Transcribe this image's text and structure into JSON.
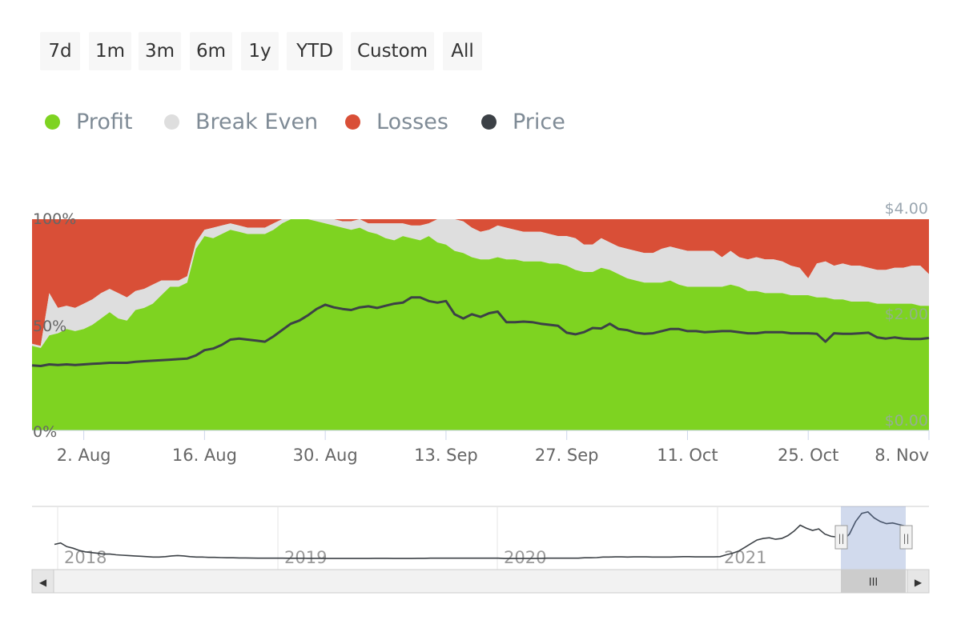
{
  "range_buttons": [
    "7d",
    "1m",
    "3m",
    "6m",
    "1y",
    "YTD",
    "Custom",
    "All"
  ],
  "legend": [
    {
      "label": "Profit",
      "color": "#7ed321"
    },
    {
      "label": "Break Even",
      "color": "#dedede"
    },
    {
      "label": "Losses",
      "color": "#d94f37"
    },
    {
      "label": "Price",
      "color": "#3c4146"
    }
  ],
  "chart_data": {
    "type": "area",
    "stacking": "percent",
    "x_start": "2021-07-27",
    "x_step_days": 1,
    "xlim": [
      "2021-07-27",
      "2021-11-08"
    ],
    "x_tick_labels": [
      "2. Aug",
      "16. Aug",
      "30. Aug",
      "13. Sep",
      "27. Sep",
      "11. Oct",
      "25. Oct",
      "8. Nov"
    ],
    "x_tick_dates": [
      "2021-08-02",
      "2021-08-16",
      "2021-08-30",
      "2021-09-13",
      "2021-09-27",
      "2021-10-11",
      "2021-10-25",
      "2021-11-08"
    ],
    "ylabel_left_ticks": [
      "0%",
      "50%",
      "100%"
    ],
    "ylim_left": [
      0,
      100
    ],
    "ylabel_right_ticks": [
      "$0.00",
      "$2.00",
      "$4.00"
    ],
    "ylim_right": [
      0,
      4
    ],
    "series": [
      {
        "name": "Profit",
        "color": "#7ed321",
        "values": [
          40,
          39,
          45,
          46,
          48,
          47,
          48,
          50,
          53,
          56,
          53,
          52,
          57,
          58,
          60,
          64,
          68,
          68,
          70,
          86,
          92,
          91,
          93,
          95,
          94,
          93,
          93,
          93,
          95,
          98,
          100,
          100,
          100,
          99,
          98,
          97,
          96,
          95,
          96,
          94,
          93,
          91,
          90,
          92,
          91,
          90,
          92,
          89,
          88,
          85,
          84,
          82,
          81,
          81,
          82,
          81,
          81,
          80,
          80,
          80,
          79,
          79,
          78,
          76,
          75,
          75,
          77,
          76,
          74,
          72,
          71,
          70,
          70,
          70,
          71,
          69,
          68,
          68,
          68,
          68,
          68,
          69,
          68,
          66,
          66,
          65,
          65,
          65,
          64,
          64,
          64,
          63,
          63,
          62,
          62,
          61,
          61,
          61,
          60,
          60,
          60,
          60,
          60,
          59,
          59
        ]
      },
      {
        "name": "Break Even",
        "color": "#dedede",
        "values": [
          1,
          1,
          20,
          12,
          11,
          11,
          12,
          12,
          12,
          11,
          12,
          11,
          9,
          9,
          9,
          7,
          3,
          3,
          3,
          3,
          3,
          5,
          4,
          3,
          3,
          3,
          3,
          3,
          3,
          2,
          0,
          0,
          0,
          1,
          2,
          3,
          3,
          4,
          4,
          4,
          5,
          7,
          8,
          6,
          6,
          7,
          6,
          11,
          12,
          15,
          15,
          14,
          13,
          14,
          15,
          15,
          14,
          14,
          14,
          14,
          14,
          13,
          14,
          15,
          13,
          13,
          14,
          13,
          13,
          14,
          14,
          14,
          14,
          16,
          16,
          17,
          17,
          17,
          17,
          17,
          14,
          16,
          14,
          15,
          16,
          16,
          16,
          15,
          14,
          13,
          8,
          16,
          17,
          16,
          17,
          17,
          17,
          16,
          16,
          16,
          17,
          17,
          18,
          19,
          15
        ]
      },
      {
        "name": "Losses",
        "color": "#d94f37",
        "values": [
          59,
          60,
          35,
          42,
          41,
          42,
          40,
          38,
          35,
          33,
          35,
          37,
          34,
          33,
          31,
          29,
          29,
          29,
          27,
          11,
          5,
          4,
          3,
          2,
          3,
          4,
          4,
          4,
          2,
          0,
          0,
          0,
          0,
          0,
          0,
          0,
          1,
          1,
          0,
          2,
          2,
          2,
          2,
          2,
          3,
          3,
          2,
          0,
          0,
          0,
          1,
          4,
          6,
          5,
          3,
          4,
          5,
          6,
          6,
          6,
          7,
          8,
          8,
          9,
          12,
          12,
          9,
          11,
          13,
          14,
          15,
          16,
          16,
          14,
          13,
          14,
          15,
          15,
          15,
          15,
          18,
          15,
          18,
          19,
          18,
          19,
          19,
          20,
          22,
          23,
          28,
          21,
          20,
          22,
          21,
          22,
          22,
          23,
          24,
          24,
          23,
          23,
          22,
          22,
          26
        ]
      },
      {
        "name": "Price",
        "color": "#3c4146",
        "axis": "right",
        "values": [
          1.23,
          1.22,
          1.25,
          1.24,
          1.25,
          1.24,
          1.25,
          1.26,
          1.27,
          1.28,
          1.28,
          1.28,
          1.3,
          1.31,
          1.32,
          1.33,
          1.34,
          1.35,
          1.36,
          1.42,
          1.52,
          1.55,
          1.62,
          1.72,
          1.74,
          1.72,
          1.7,
          1.68,
          1.78,
          1.9,
          2.02,
          2.08,
          2.18,
          2.3,
          2.38,
          2.33,
          2.3,
          2.28,
          2.33,
          2.35,
          2.32,
          2.36,
          2.4,
          2.42,
          2.52,
          2.52,
          2.45,
          2.42,
          2.45,
          2.2,
          2.12,
          2.2,
          2.15,
          2.22,
          2.25,
          2.05,
          2.05,
          2.06,
          2.05,
          2.02,
          2.0,
          1.98,
          1.85,
          1.82,
          1.86,
          1.94,
          1.93,
          2.02,
          1.92,
          1.9,
          1.85,
          1.83,
          1.84,
          1.88,
          1.92,
          1.92,
          1.88,
          1.88,
          1.86,
          1.87,
          1.88,
          1.88,
          1.86,
          1.84,
          1.84,
          1.86,
          1.86,
          1.86,
          1.84,
          1.84,
          1.84,
          1.83,
          1.68,
          1.84,
          1.83,
          1.83,
          1.84,
          1.85,
          1.76,
          1.74,
          1.76,
          1.74,
          1.73,
          1.73,
          1.75
        ]
      }
    ]
  },
  "navigator": {
    "year_labels": [
      "2018",
      "2019",
      "2020",
      "2021"
    ],
    "scroll_left_arrow": "◀",
    "scroll_right_arrow": "▶",
    "scroll_grip": "III",
    "handle_grip": "||",
    "price_series": [
      3.4,
      3.6,
      3.1,
      2.9,
      2.6,
      2.4,
      2.3,
      2.2,
      2.1,
      2.1,
      2.0,
      1.95,
      1.9,
      1.85,
      1.8,
      1.75,
      1.7,
      1.7,
      1.75,
      1.85,
      1.9,
      1.85,
      1.75,
      1.7,
      1.7,
      1.65,
      1.65,
      1.62,
      1.6,
      1.6,
      1.58,
      1.58,
      1.56,
      1.55,
      1.55,
      1.55,
      1.55,
      1.55,
      1.54,
      1.53,
      1.53,
      1.52,
      1.52,
      1.52,
      1.5,
      1.5,
      1.5,
      1.5,
      1.5,
      1.5,
      1.5,
      1.5,
      1.52,
      1.52,
      1.52,
      1.5,
      1.5,
      1.5,
      1.5,
      1.52,
      1.52,
      1.55,
      1.55,
      1.55,
      1.55,
      1.55,
      1.55,
      1.55,
      1.55,
      1.55,
      1.55,
      1.55,
      1.55,
      1.5,
      1.5,
      1.5,
      1.5,
      1.5,
      1.5,
      1.52,
      1.55,
      1.55,
      1.55,
      1.55,
      1.55,
      1.55,
      1.6,
      1.6,
      1.62,
      1.7,
      1.7,
      1.72,
      1.72,
      1.7,
      1.72,
      1.72,
      1.72,
      1.7,
      1.7,
      1.7,
      1.7,
      1.72,
      1.75,
      1.75,
      1.72,
      1.72,
      1.72,
      1.72,
      1.75,
      2.0,
      2.2,
      2.5,
      3.0,
      3.5,
      4.0,
      4.2,
      4.3,
      4.1,
      4.2,
      4.6,
      5.2,
      6.0,
      5.6,
      5.3,
      5.5,
      4.8,
      4.5,
      4.4,
      4.0,
      4.8,
      6.5,
      7.6,
      7.8,
      7.0,
      6.5,
      6.2,
      6.3,
      6.1,
      5.9
    ]
  }
}
